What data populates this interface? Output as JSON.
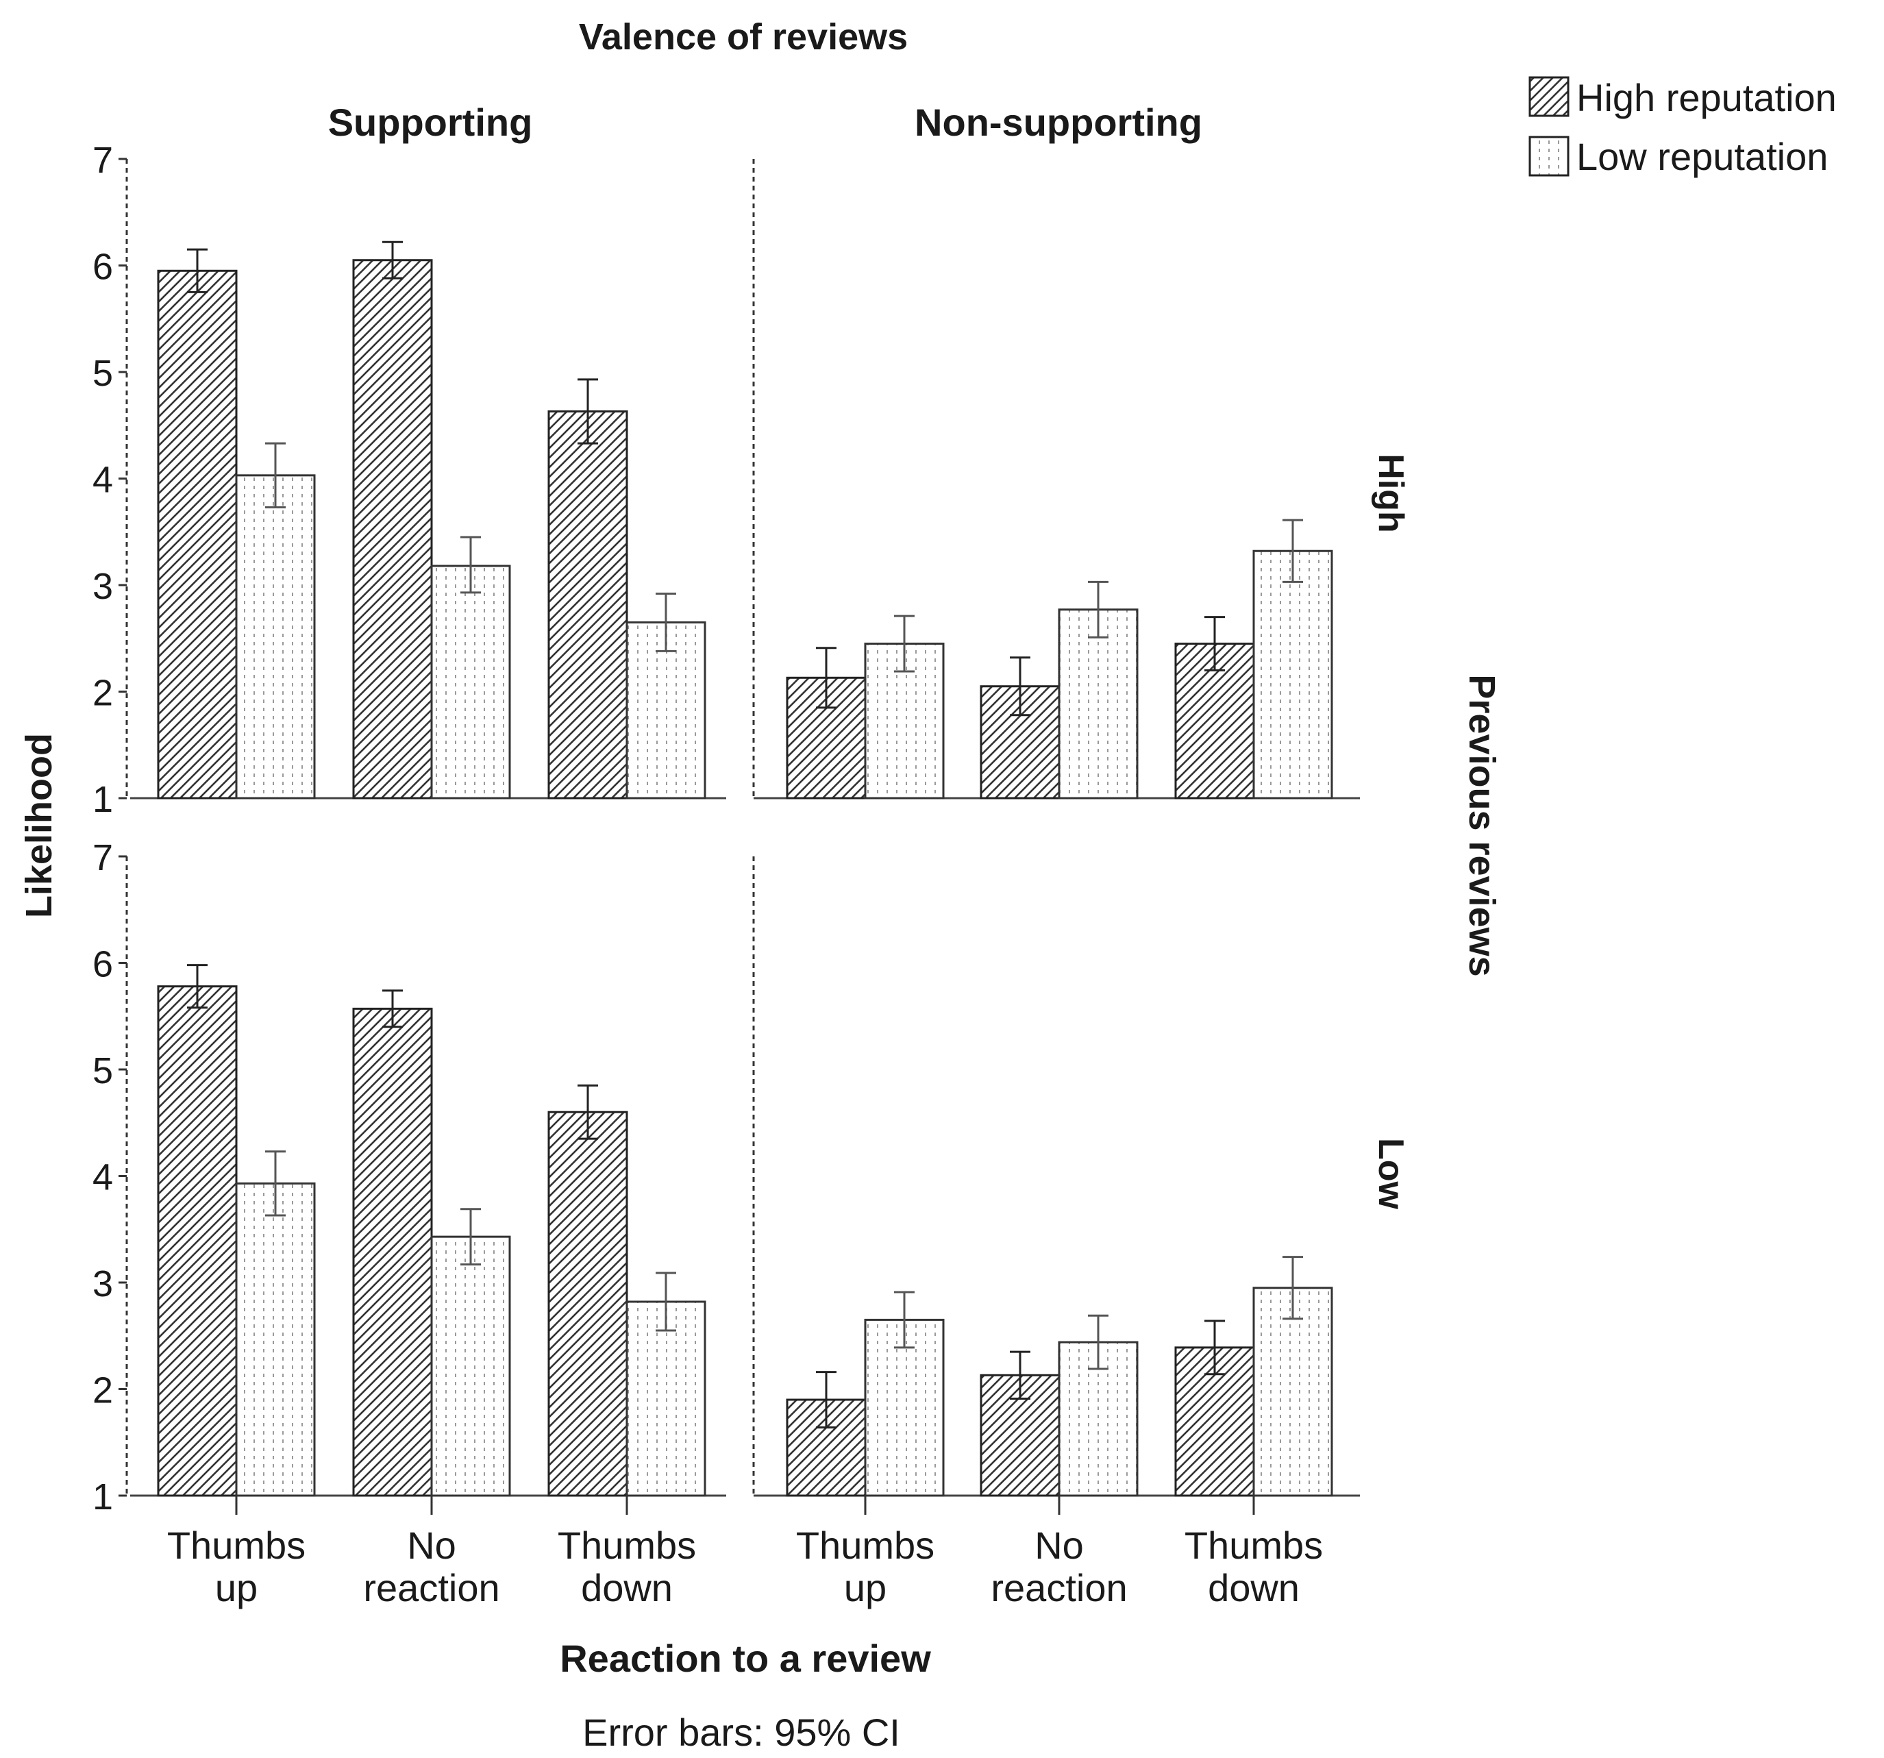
{
  "chart_data": {
    "type": "bar",
    "title": "Valence of reviews",
    "xlabel": "Reaction to a review",
    "ylabel": "Likelihood",
    "row_facet_label": "Previous reviews",
    "note": "Error bars: 95% CI",
    "ylim": [
      1,
      7
    ],
    "yticks": [
      "1",
      "2",
      "3",
      "4",
      "5",
      "6",
      "7"
    ],
    "categories": [
      "Thumbs up",
      "No reaction",
      "Thumbs down"
    ],
    "category_lines": [
      [
        "Thumbs",
        "up"
      ],
      [
        "No",
        "reaction"
      ],
      [
        "Thumbs",
        "down"
      ]
    ],
    "legend": [
      {
        "name": "High reputation",
        "pattern": "hatch"
      },
      {
        "name": "Low reputation",
        "pattern": "dots"
      }
    ],
    "columns": [
      "Supporting",
      "Non-supporting"
    ],
    "rows": [
      "High",
      "Low"
    ],
    "panels": [
      {
        "row": "High",
        "column": "Supporting",
        "series": [
          {
            "name": "High reputation",
            "values": [
              5.95,
              6.05,
              4.63
            ],
            "ci": [
              [
                5.75,
                6.15
              ],
              [
                5.88,
                6.22
              ],
              [
                4.33,
                4.93
              ]
            ]
          },
          {
            "name": "Low reputation",
            "values": [
              4.03,
              3.18,
              2.65
            ],
            "ci": [
              [
                3.73,
                4.33
              ],
              [
                2.93,
                3.45
              ],
              [
                2.38,
                2.92
              ]
            ]
          }
        ]
      },
      {
        "row": "High",
        "column": "Non-supporting",
        "series": [
          {
            "name": "High reputation",
            "values": [
              2.13,
              2.05,
              2.45
            ],
            "ci": [
              [
                1.85,
                2.41
              ],
              [
                1.78,
                2.32
              ],
              [
                2.2,
                2.7
              ]
            ]
          },
          {
            "name": "Low reputation",
            "values": [
              2.45,
              2.77,
              3.32
            ],
            "ci": [
              [
                2.19,
                2.71
              ],
              [
                2.51,
                3.03
              ],
              [
                3.03,
                3.61
              ]
            ]
          }
        ]
      },
      {
        "row": "Low",
        "column": "Supporting",
        "series": [
          {
            "name": "High reputation",
            "values": [
              5.78,
              5.57,
              4.6
            ],
            "ci": [
              [
                5.58,
                5.98
              ],
              [
                5.4,
                5.74
              ],
              [
                4.35,
                4.85
              ]
            ]
          },
          {
            "name": "Low reputation",
            "values": [
              3.93,
              3.43,
              2.82
            ],
            "ci": [
              [
                3.63,
                4.23
              ],
              [
                3.17,
                3.69
              ],
              [
                2.55,
                3.09
              ]
            ]
          }
        ]
      },
      {
        "row": "Low",
        "column": "Non-supporting",
        "series": [
          {
            "name": "High reputation",
            "values": [
              1.9,
              2.13,
              2.39
            ],
            "ci": [
              [
                1.64,
                2.16
              ],
              [
                1.91,
                2.35
              ],
              [
                2.14,
                2.64
              ]
            ]
          },
          {
            "name": "Low reputation",
            "values": [
              2.65,
              2.44,
              2.95
            ],
            "ci": [
              [
                2.39,
                2.91
              ],
              [
                2.19,
                2.69
              ],
              [
                2.66,
                3.24
              ]
            ]
          }
        ]
      }
    ]
  }
}
